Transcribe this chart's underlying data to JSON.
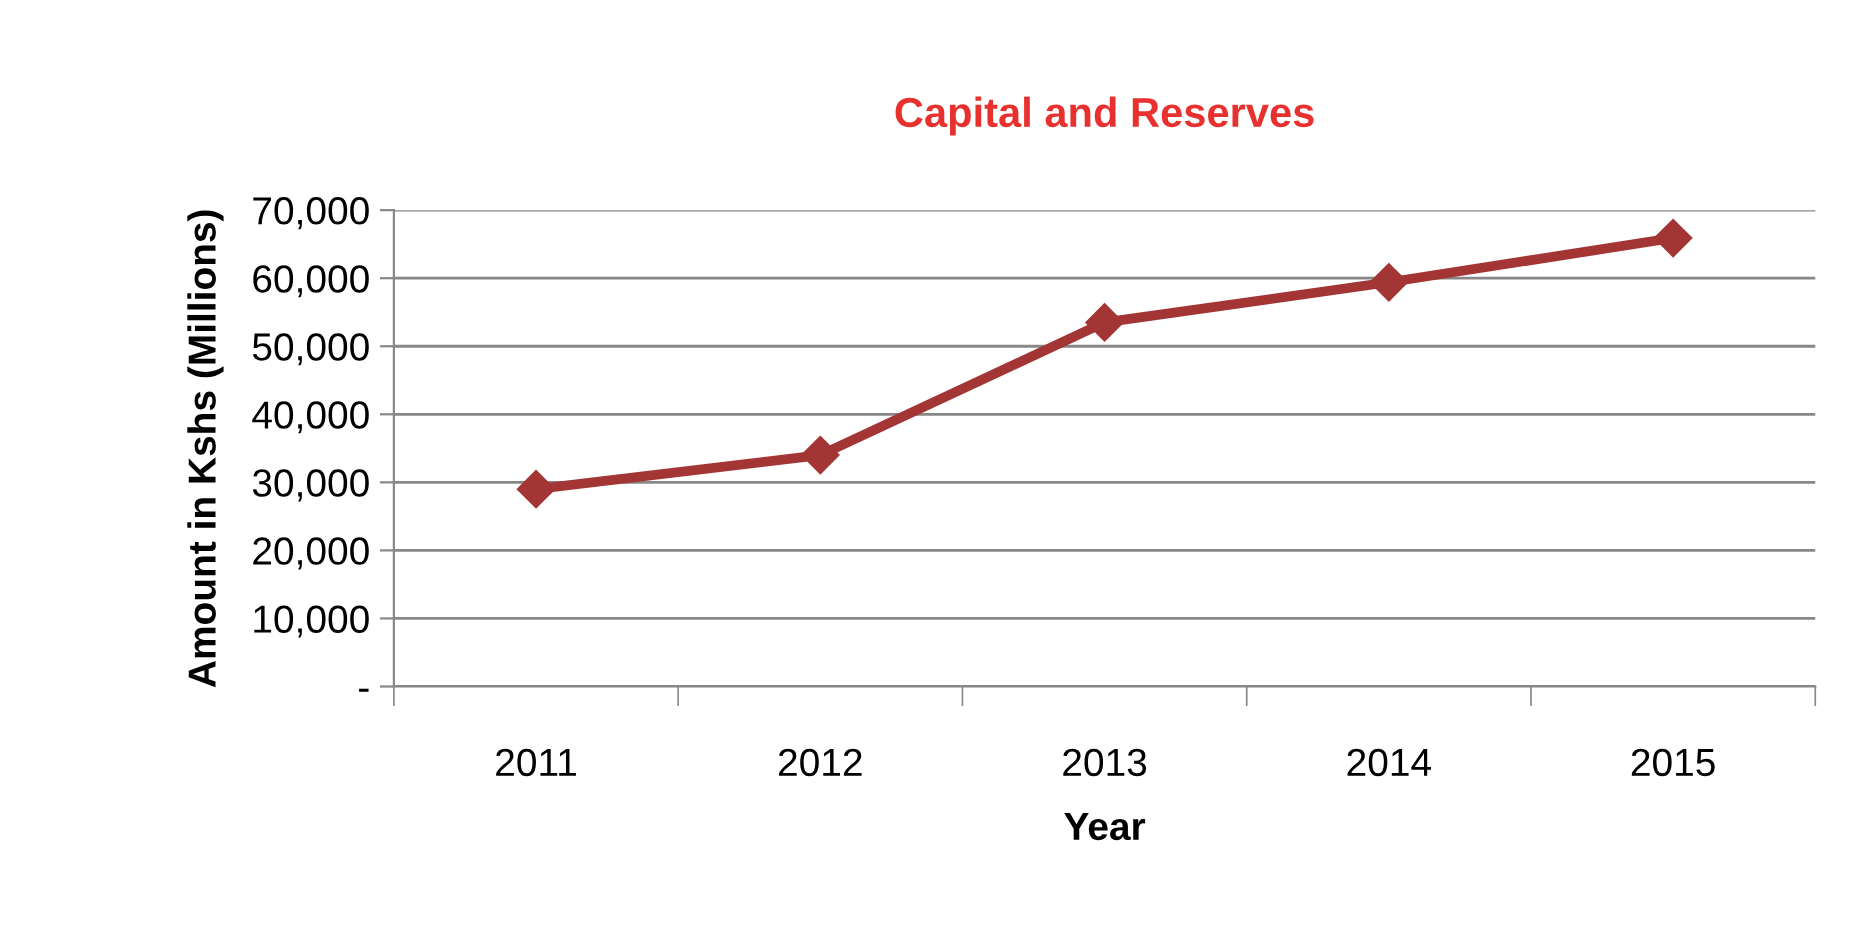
{
  "chart_data": {
    "type": "line",
    "title": "Capital and Reserves",
    "xlabel": "Year",
    "ylabel": "Amount in Kshs (Millions)",
    "categories": [
      "2011",
      "2012",
      "2013",
      "2014",
      "2015"
    ],
    "series": [
      {
        "color": "#a33535",
        "values": [
          29000,
          34000,
          53500,
          59400,
          65900
        ]
      }
    ],
    "ylim": [
      0,
      70000
    ],
    "yticks": [
      {
        "value": 0,
        "label": "-"
      },
      {
        "value": 10000,
        "label": "10,000"
      },
      {
        "value": 20000,
        "label": "20,000"
      },
      {
        "value": 30000,
        "label": "30,000"
      },
      {
        "value": 40000,
        "label": "40,000"
      },
      {
        "value": 50000,
        "label": "50,000"
      },
      {
        "value": 60000,
        "label": "60,000"
      },
      {
        "value": 70000,
        "label": "70,000"
      }
    ],
    "grid": "y",
    "marker": "diamond",
    "line_style": "solid",
    "legend": false
  }
}
